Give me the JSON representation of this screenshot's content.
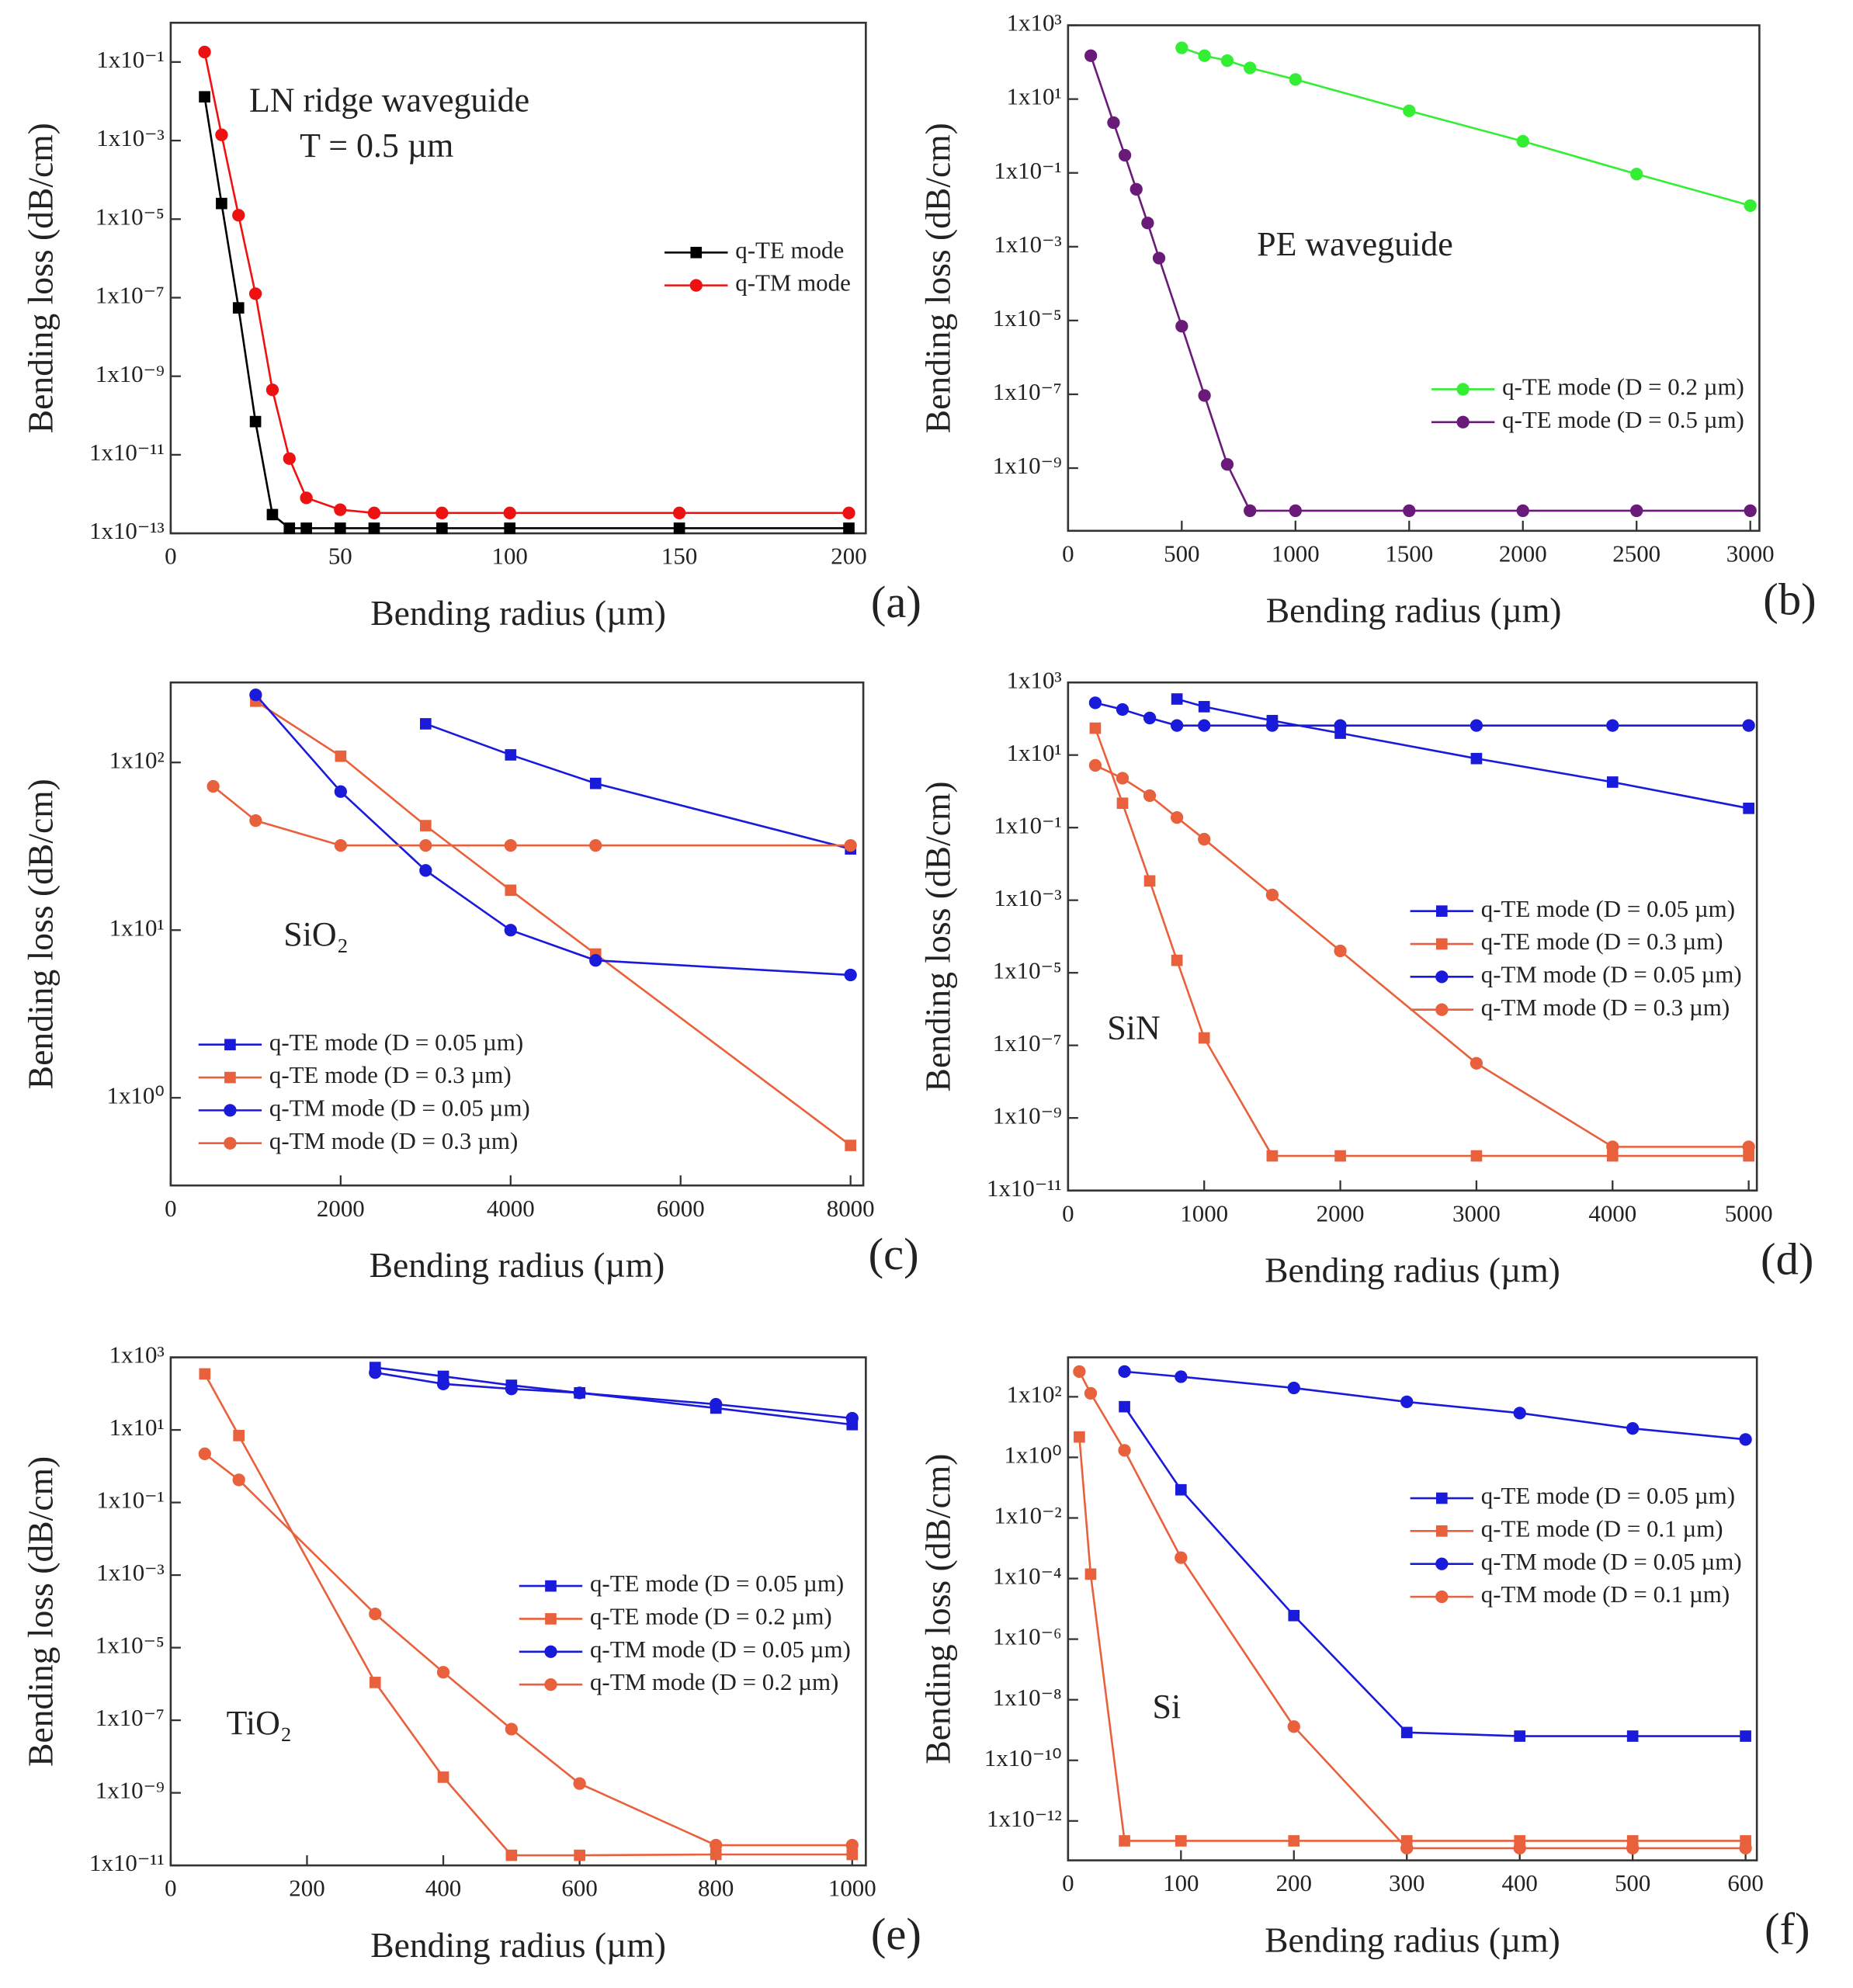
{
  "chart_data": [
    {
      "type": "line",
      "panel": "(a)",
      "x_label": "Bending radius (µm)",
      "y_label": "Bending loss (dB/cm)",
      "yscale": "log",
      "legend": "center right",
      "annotations": [
        "LN ridge waveguide",
        "T = 0.5 µm"
      ],
      "xlim": [
        0,
        205
      ],
      "xticks": [
        0,
        50,
        100,
        150,
        200
      ],
      "ylim": [
        1e-13,
        1
      ],
      "yticks": [
        {
          "value": 0.1,
          "label": "1x10⁻¹"
        },
        {
          "value": 0.001,
          "label": "1x10⁻³"
        },
        {
          "value": 1e-05,
          "label": "1x10⁻⁵"
        },
        {
          "value": 1e-07,
          "label": "1x10⁻⁷"
        },
        {
          "value": 1e-09,
          "label": "1x10⁻⁹"
        },
        {
          "value": 1e-11,
          "label": "1x10⁻¹¹"
        },
        {
          "value": 1e-13,
          "label": "1x10⁻¹³"
        }
      ],
      "series": [
        {
          "name": "q-TE mode",
          "color": "#000000",
          "marker": "square",
          "x": [
            10,
            15,
            20,
            25,
            30,
            35,
            40,
            50,
            60,
            80,
            100,
            150,
            200
          ],
          "values": [
            0.013,
            2.5e-05,
            5.5e-08,
            7e-11,
            3e-13,
            1.35e-13,
            1.35e-13,
            1.35e-13,
            1.35e-13,
            1.35e-13,
            1.35e-13,
            1.35e-13,
            1.35e-13
          ]
        },
        {
          "name": "q-TM mode",
          "color": "#ee1111",
          "marker": "circle",
          "x": [
            10,
            15,
            20,
            25,
            30,
            35,
            40,
            50,
            60,
            80,
            100,
            150,
            200
          ],
          "values": [
            0.18,
            0.0014,
            1.26e-05,
            1.26e-07,
            4.5e-10,
            8e-12,
            8e-13,
            4e-13,
            3.3e-13,
            3.3e-13,
            3.3e-13,
            3.3e-13,
            3.3e-13
          ]
        }
      ]
    },
    {
      "type": "line",
      "panel": "(b)",
      "x_label": "Bending radius (µm)",
      "y_label": "Bending loss (dB/cm)",
      "yscale": "log",
      "legend": "lower right",
      "annotations": [
        "PE waveguide"
      ],
      "xlim": [
        0,
        3040
      ],
      "xticks": [
        0,
        500,
        1000,
        1500,
        2000,
        2500,
        3000
      ],
      "ylim": [
        2e-11,
        1000
      ],
      "yticks": [
        {
          "value": 1000,
          "label": "1x10³"
        },
        {
          "value": 10,
          "label": "1x10¹"
        },
        {
          "value": 0.1,
          "label": "1x10⁻¹"
        },
        {
          "value": 0.001,
          "label": "1x10⁻³"
        },
        {
          "value": 1e-05,
          "label": "1x10⁻⁵"
        },
        {
          "value": 1e-07,
          "label": "1x10⁻⁷"
        },
        {
          "value": 1e-09,
          "label": "1x10⁻⁹"
        }
      ],
      "series": [
        {
          "name": "q-TE mode (D = 0.2 µm)",
          "color": "#33ee33",
          "marker": "circle",
          "x": [
            500,
            600,
            700,
            800,
            1000,
            1500,
            2000,
            2500,
            3000
          ],
          "values": [
            245,
            150,
            110,
            70,
            34,
            4.8,
            0.72,
            0.093,
            0.013
          ]
        },
        {
          "name": "q-TE mode (D = 0.5 µm)",
          "color": "#6a1b7a",
          "marker": "circle",
          "x": [
            100,
            200,
            250,
            300,
            350,
            400,
            500,
            600,
            700,
            800,
            1000,
            1500,
            2000,
            2500,
            3000
          ],
          "values": [
            150,
            2.3,
            0.3,
            0.036,
            0.0044,
            0.00049,
            7e-06,
            9.3e-08,
            1.26e-09,
            7e-11,
            7e-11,
            7e-11,
            7e-11,
            7e-11,
            7e-11
          ]
        }
      ]
    },
    {
      "type": "line",
      "panel": "(c)",
      "x_label": "Bending radius (µm)",
      "y_label": "Bending loss (dB/cm)",
      "yscale": "log",
      "legend": "lower left",
      "annotations": [
        "SiO₂"
      ],
      "xlim": [
        0,
        8150
      ],
      "xticks": [
        0,
        2000,
        4000,
        6000,
        8000
      ],
      "ylim": [
        0.3,
        300
      ],
      "yticks": [
        {
          "value": 100,
          "label": "1x10²"
        },
        {
          "value": 10,
          "label": "1x10¹"
        },
        {
          "value": 1,
          "label": "1x10⁰"
        }
      ],
      "series": [
        {
          "name": "q-TE mode (D = 0.05 µm)",
          "color": "#1a1adb",
          "marker": "square",
          "x": [
            3000,
            4000,
            5000,
            8000
          ],
          "values": [
            170,
            111,
            75,
            30.5
          ]
        },
        {
          "name": "q-TE mode (D = 0.3 µm)",
          "color": "#e8603c",
          "marker": "square",
          "x": [
            1000,
            2000,
            3000,
            4000,
            5000,
            8000
          ],
          "values": [
            232,
            109,
            42,
            17.3,
            7.2,
            0.52
          ]
        },
        {
          "name": "q-TM mode (D = 0.05 µm)",
          "color": "#1a1adb",
          "marker": "circle",
          "x": [
            1000,
            2000,
            3000,
            4000,
            5000,
            8000
          ],
          "values": [
            253,
            67,
            22.7,
            10,
            6.6,
            5.4
          ]
        },
        {
          "name": "q-TM mode (D = 0.3 µm)",
          "color": "#e8603c",
          "marker": "circle",
          "x": [
            500,
            1000,
            2000,
            3000,
            4000,
            5000,
            8000
          ],
          "values": [
            72,
            45,
            32,
            32,
            32,
            32,
            32
          ]
        }
      ]
    },
    {
      "type": "line",
      "panel": "(d)",
      "x_label": "Bending radius (µm)",
      "y_label": "Bending loss (dB/cm)",
      "yscale": "log",
      "legend": "center right",
      "annotations": [
        "SiN"
      ],
      "xlim": [
        0,
        5060
      ],
      "xticks": [
        0,
        1000,
        2000,
        3000,
        4000,
        5000
      ],
      "ylim": [
        1e-11,
        1000
      ],
      "yticks": [
        {
          "value": 1000,
          "label": "1x10³"
        },
        {
          "value": 10,
          "label": "1x10¹"
        },
        {
          "value": 0.1,
          "label": "1x10⁻¹"
        },
        {
          "value": 0.001,
          "label": "1x10⁻³"
        },
        {
          "value": 1e-05,
          "label": "1x10⁻⁵"
        },
        {
          "value": 1e-07,
          "label": "1x10⁻⁷"
        },
        {
          "value": 1e-09,
          "label": "1x10⁻⁹"
        },
        {
          "value": 1e-11,
          "label": "1x10⁻¹¹"
        }
      ],
      "series": [
        {
          "name": "q-TE mode (D = 0.05 µm)",
          "color": "#1a1adb",
          "marker": "square",
          "x": [
            800,
            1000,
            1500,
            2000,
            3000,
            4000,
            5000
          ],
          "values": [
            350,
            215,
            89,
            40,
            8,
            1.8,
            0.34
          ]
        },
        {
          "name": "q-TE mode (D = 0.3 µm)",
          "color": "#e8603c",
          "marker": "square",
          "x": [
            200,
            400,
            600,
            800,
            1000,
            1500,
            2000,
            3000,
            4000,
            5000
          ],
          "values": [
            55,
            0.47,
            0.0034,
            2.2e-05,
            1.6e-07,
            9e-11,
            9e-11,
            9e-11,
            9e-11,
            9e-11
          ]
        },
        {
          "name": "q-TM mode (D = 0.05 µm)",
          "color": "#1a1adb",
          "marker": "circle",
          "x": [
            200,
            400,
            600,
            800,
            1000,
            1500,
            2000,
            3000,
            4000,
            5000
          ],
          "values": [
            275,
            180,
            105,
            65,
            65,
            65,
            65,
            65,
            65,
            65
          ]
        },
        {
          "name": "q-TM mode (D = 0.3 µm)",
          "color": "#e8603c",
          "marker": "circle",
          "x": [
            200,
            400,
            600,
            800,
            1000,
            1500,
            2000,
            3000,
            4000,
            5000
          ],
          "values": [
            5.2,
            2.3,
            0.76,
            0.19,
            0.048,
            0.0014,
            4e-05,
            3.2e-08,
            1.6e-10,
            1.6e-10
          ]
        }
      ]
    },
    {
      "type": "line",
      "panel": "(e)",
      "x_label": "Bending radius (µm)",
      "y_label": "Bending loss (dB/cm)",
      "yscale": "log",
      "legend": "center right",
      "annotations": [
        "TiO₂"
      ],
      "xlim": [
        0,
        1020
      ],
      "xticks": [
        0,
        200,
        400,
        600,
        800,
        1000
      ],
      "ylim": [
        1e-11,
        1000
      ],
      "yticks": [
        {
          "value": 1000,
          "label": "1x10³"
        },
        {
          "value": 10,
          "label": "1x10¹"
        },
        {
          "value": 0.1,
          "label": "1x10⁻¹"
        },
        {
          "value": 0.001,
          "label": "1x10⁻³"
        },
        {
          "value": 1e-05,
          "label": "1x10⁻⁵"
        },
        {
          "value": 1e-07,
          "label": "1x10⁻⁷"
        },
        {
          "value": 1e-09,
          "label": "1x10⁻⁹"
        },
        {
          "value": 1e-11,
          "label": "1x10⁻¹¹"
        }
      ],
      "series": [
        {
          "name": "q-TE mode (D = 0.05 µm)",
          "color": "#1a1adb",
          "marker": "square",
          "x": [
            300,
            400,
            500,
            600,
            800,
            1000
          ],
          "values": [
            525,
            300,
            170,
            105,
            40,
            14
          ]
        },
        {
          "name": "q-TE mode (D = 0.2 µm)",
          "color": "#e8603c",
          "marker": "square",
          "x": [
            50,
            100,
            300,
            400,
            500,
            600,
            800,
            1000
          ],
          "values": [
            350,
            7,
            1.1e-06,
            2.7e-09,
            1.9e-11,
            1.9e-11,
            2e-11,
            2e-11
          ]
        },
        {
          "name": "q-TM mode (D = 0.05 µm)",
          "color": "#1a1adb",
          "marker": "circle",
          "x": [
            300,
            400,
            500,
            600,
            800,
            1000
          ],
          "values": [
            380,
            185,
            135,
            105,
            51,
            21
          ]
        },
        {
          "name": "q-TM mode (D = 0.2 µm)",
          "color": "#e8603c",
          "marker": "circle",
          "x": [
            50,
            100,
            300,
            400,
            500,
            600,
            800,
            1000
          ],
          "values": [
            2.2,
            0.42,
            8.5e-05,
            2.1e-06,
            5.7e-08,
            1.8e-09,
            3.6e-11,
            3.6e-11
          ]
        }
      ]
    },
    {
      "type": "line",
      "panel": "(f)",
      "x_label": "Bending radius (µm)",
      "y_label": "Bending loss (dB/cm)",
      "yscale": "log",
      "legend": "upper right",
      "annotations": [
        "Si"
      ],
      "xlim": [
        0,
        610
      ],
      "xticks": [
        0,
        100,
        200,
        300,
        400,
        500,
        600
      ],
      "ylim": [
        5e-14,
        2000
      ],
      "yticks": [
        {
          "value": 100,
          "label": "1x10²"
        },
        {
          "value": 1,
          "label": "1x10⁰"
        },
        {
          "value": 0.01,
          "label": "1x10⁻²"
        },
        {
          "value": 0.0001,
          "label": "1x10⁻⁴"
        },
        {
          "value": 1e-06,
          "label": "1x10⁻⁶"
        },
        {
          "value": 1e-08,
          "label": "1x10⁻⁸"
        },
        {
          "value": 1e-10,
          "label": "1x10⁻¹⁰"
        },
        {
          "value": 1e-12,
          "label": "1x10⁻¹²"
        }
      ],
      "series": [
        {
          "name": "q-TE mode (D = 0.05 µm)",
          "color": "#1a1adb",
          "marker": "square",
          "x": [
            50,
            100,
            200,
            300,
            400,
            500,
            600
          ],
          "values": [
            47,
            0.085,
            6e-06,
            8.3e-10,
            6.3e-10,
            6.3e-10,
            6.3e-10
          ]
        },
        {
          "name": "q-TE mode (D = 0.1 µm)",
          "color": "#e8603c",
          "marker": "square",
          "x": [
            10,
            20,
            50,
            100,
            200,
            300,
            400,
            500,
            600
          ],
          "values": [
            4.7,
            0.00014,
            2.2e-13,
            2.2e-13,
            2.2e-13,
            2.2e-13,
            2.2e-13,
            2.2e-13,
            2.2e-13
          ]
        },
        {
          "name": "q-TM mode (D = 0.05 µm)",
          "color": "#1a1adb",
          "marker": "circle",
          "x": [
            50,
            100,
            200,
            300,
            400,
            500,
            600
          ],
          "values": [
            680,
            460,
            195,
            68,
            29,
            9,
            3.9
          ]
        },
        {
          "name": "q-TM mode (D = 0.1 µm)",
          "color": "#e8603c",
          "marker": "circle",
          "x": [
            10,
            20,
            50,
            100,
            200,
            300,
            400,
            500,
            600
          ],
          "values": [
            680,
            130,
            1.7,
            0.00049,
            1.3e-09,
            1.26e-13,
            1.26e-13,
            1.26e-13,
            1.26e-13
          ]
        }
      ]
    }
  ]
}
